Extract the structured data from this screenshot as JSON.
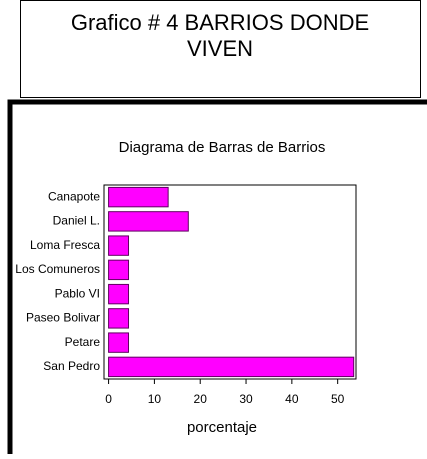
{
  "header": {
    "title": "Grafico # 4 BARRIOS DONDE VIVEN"
  },
  "chart_data": {
    "type": "barh",
    "title": "Diagrama de Barras de Barrios",
    "xlabel": "porcentaje",
    "categories": [
      "Canapote",
      "Daniel L.",
      "Loma Fresca",
      "Los Comuneros",
      "Pablo VI",
      "Paseo Bolivar",
      "Petare",
      "San Pedro"
    ],
    "values": [
      13.0,
      17.4,
      4.35,
      4.35,
      4.35,
      4.35,
      4.35,
      53.5
    ],
    "color": "#ff00ff",
    "xlim": [
      -1,
      54
    ],
    "xticks": [
      0,
      10,
      20,
      30,
      40,
      50
    ]
  }
}
